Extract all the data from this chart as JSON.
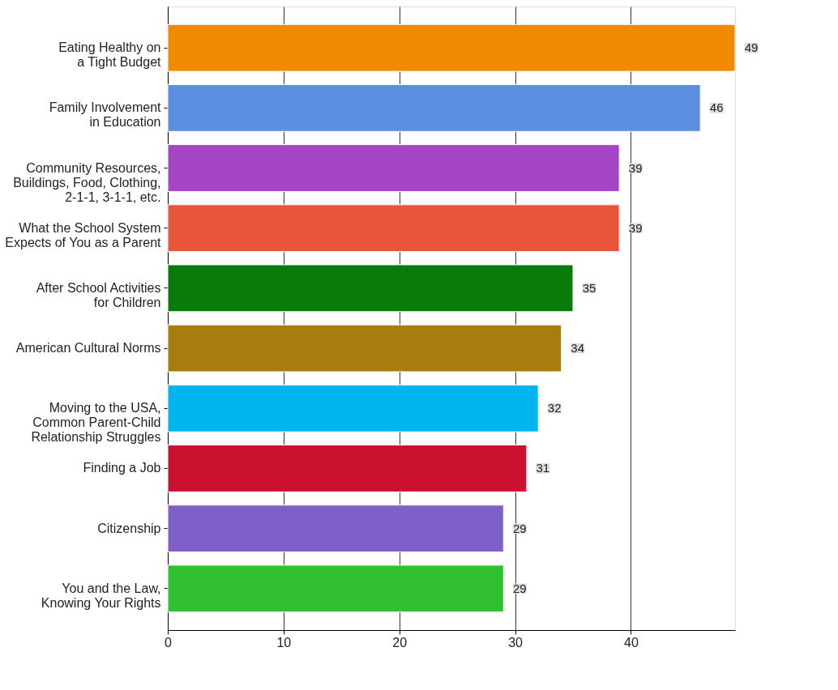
{
  "chart_data": {
    "type": "bar",
    "orientation": "horizontal",
    "categories": [
      "Eating Healthy on\na Tight Budget",
      "Family Involvement\nin Education",
      "Community Resources,\nBuildings, Food, Clothing,\n2-1-1, 3-1-1, etc.",
      "What the School System\nExpects of You as a Parent",
      "After School Activities\nfor Children",
      "American Cultural Norms",
      "Moving to the USA,\nCommon Parent-Child\nRelationship Struggles",
      "Finding a Job",
      "Citizenship",
      "You and the Law,\nKnowing Your Rights"
    ],
    "values": [
      49,
      46,
      39,
      39,
      35,
      34,
      32,
      31,
      29,
      29
    ],
    "colors": [
      "#f08a00",
      "#5b8de0",
      "#a445c4",
      "#e8553a",
      "#0a7a0a",
      "#a87c10",
      "#00b4f0",
      "#cc1030",
      "#8060c8",
      "#30c030"
    ],
    "xlim": [
      0,
      49
    ],
    "xticks": [
      0,
      10,
      20,
      30,
      40
    ],
    "grid": "x",
    "data_labels": true
  }
}
